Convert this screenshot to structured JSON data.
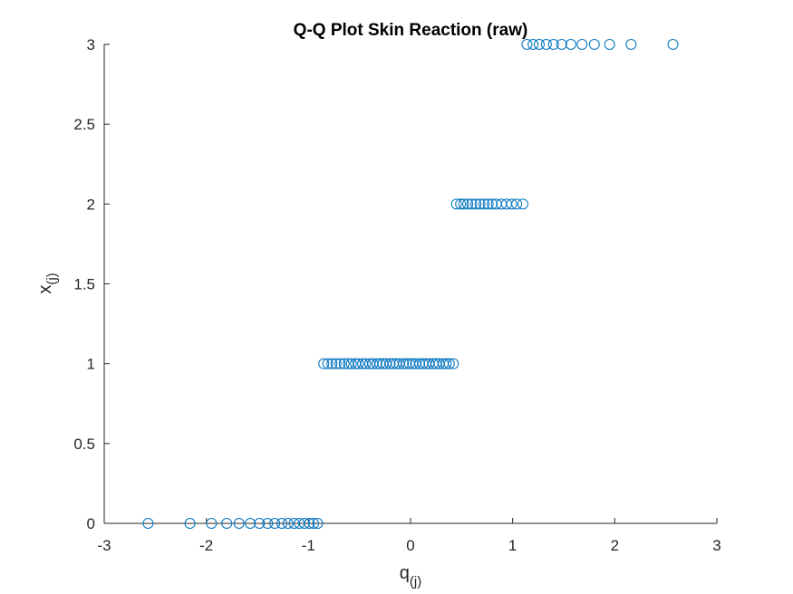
{
  "chart_data": {
    "type": "scatter",
    "title": "Q-Q Plot Skin Reaction (raw)",
    "xlabel": "q",
    "xlabel_subscript": "(j)",
    "ylabel": "x",
    "ylabel_subscript": "(j)",
    "xlim": [
      -3,
      3
    ],
    "ylim": [
      0,
      3
    ],
    "x_ticks": [
      -3,
      -2,
      -1,
      0,
      1,
      2,
      3
    ],
    "x_tick_labels": [
      "-3",
      "-2",
      "-1",
      "0",
      "1",
      "2",
      "3"
    ],
    "y_ticks": [
      0,
      0.5,
      1,
      1.5,
      2,
      2.5,
      3
    ],
    "y_tick_labels": [
      "0",
      "0.5",
      "1",
      "1.5",
      "2",
      "2.5",
      "3"
    ],
    "grid": false,
    "legend": "none",
    "marker": "open-circle",
    "marker_color": "#0072BD",
    "series": [
      {
        "x": [
          -2.57,
          -2.16,
          -1.95,
          -1.8,
          -1.68,
          -1.57,
          -1.48,
          -1.4,
          -1.33,
          -1.26,
          -1.2,
          -1.14,
          -1.09,
          -1.04,
          -0.99,
          -0.95,
          -0.91,
          -0.85,
          -0.81,
          -0.77,
          -0.73,
          -0.69,
          -0.65,
          -0.61,
          -0.58,
          -0.54,
          -0.51,
          -0.47,
          -0.44,
          -0.4,
          -0.37,
          -0.33,
          -0.3,
          -0.27,
          -0.24,
          -0.2,
          -0.17,
          -0.14,
          -0.11,
          -0.07,
          -0.04,
          -0.01,
          0.02,
          0.05,
          0.09,
          0.12,
          0.15,
          0.18,
          0.22,
          0.25,
          0.28,
          0.32,
          0.35,
          0.38,
          0.42,
          0.45,
          0.49,
          0.52,
          0.56,
          0.6,
          0.64,
          0.68,
          0.72,
          0.76,
          0.8,
          0.84,
          0.89,
          0.94,
          0.99,
          1.04,
          1.1,
          1.14,
          1.2,
          1.26,
          1.33,
          1.4,
          1.48,
          1.57,
          1.68,
          1.8,
          1.95,
          2.16,
          2.57
        ],
        "y": [
          0,
          0,
          0,
          0,
          0,
          0,
          0,
          0,
          0,
          0,
          0,
          0,
          0,
          0,
          0,
          0,
          0,
          1,
          1,
          1,
          1,
          1,
          1,
          1,
          1,
          1,
          1,
          1,
          1,
          1,
          1,
          1,
          1,
          1,
          1,
          1,
          1,
          1,
          1,
          1,
          1,
          1,
          1,
          1,
          1,
          1,
          1,
          1,
          1,
          1,
          1,
          1,
          1,
          1,
          1,
          2,
          2,
          2,
          2,
          2,
          2,
          2,
          2,
          2,
          2,
          2,
          2,
          2,
          2,
          2,
          2,
          3,
          3,
          3,
          3,
          3,
          3,
          3,
          3,
          3,
          3,
          3,
          3
        ]
      }
    ]
  }
}
